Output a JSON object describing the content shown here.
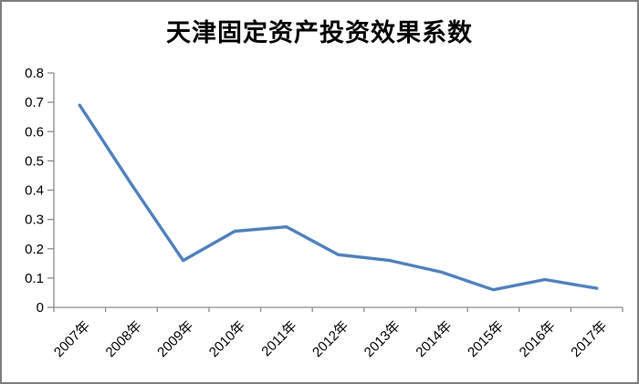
{
  "window": {
    "background": "#ffffff",
    "border_color": "#7f7f7f"
  },
  "chart_data": {
    "type": "line",
    "title": "天津固定资产投资效果系数",
    "categories": [
      "2007年",
      "2008年",
      "2009年",
      "2010年",
      "2011年",
      "2012年",
      "2013年",
      "2014年",
      "2015年",
      "2016年",
      "2017年"
    ],
    "values": [
      0.69,
      0.42,
      0.16,
      0.26,
      0.275,
      0.18,
      0.16,
      0.12,
      0.06,
      0.095,
      0.065
    ],
    "xlabel": "",
    "ylabel": "",
    "ylim": [
      0,
      0.8
    ],
    "y_tick_step": 0.1,
    "y_tick_labels": [
      "0",
      "0.1",
      "0.2",
      "0.3",
      "0.4",
      "0.5",
      "0.6",
      "0.7",
      "0.8"
    ],
    "x_label_rotation_deg": -45,
    "grid": false,
    "legend_position": "none",
    "line_color": "#4F81BD",
    "axis_color": "#8C8C8C",
    "text_color": "#000000"
  }
}
